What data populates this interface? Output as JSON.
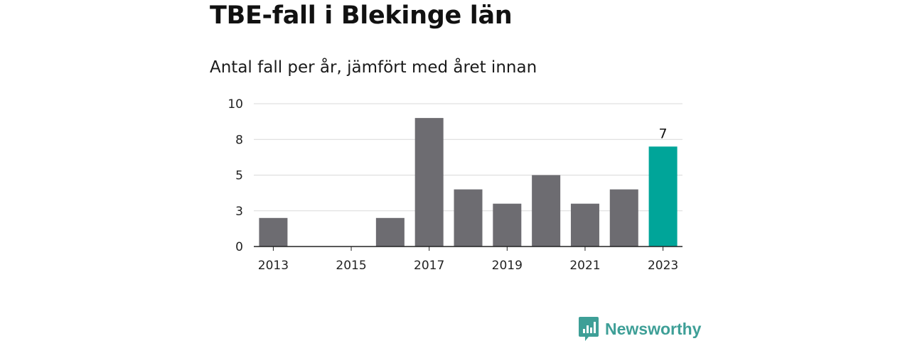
{
  "header": {
    "title": "TBE-fall i Blekinge län",
    "subtitle": "Antal fall per år, jämfört med året innan"
  },
  "chart_data": {
    "type": "bar",
    "categories": [
      "2013",
      "2014",
      "2015",
      "2016",
      "2017",
      "2018",
      "2019",
      "2020",
      "2021",
      "2022",
      "2023"
    ],
    "values": [
      2,
      0,
      0,
      2,
      9,
      4,
      3,
      5,
      3,
      4,
      7
    ],
    "x_tick_labels": [
      "2013",
      "2015",
      "2017",
      "2019",
      "2021",
      "2023"
    ],
    "y_ticks": [
      0,
      2.5,
      5,
      7.5,
      10
    ],
    "y_tick_labels": [
      "0",
      "3",
      "5",
      "8",
      "10"
    ],
    "ylim": [
      0,
      10
    ],
    "grid": true,
    "bar_color": "#6d6c71",
    "highlight_color": "#00a599",
    "highlight_category": "2023",
    "data_labels": [
      {
        "category": "2023",
        "text": "7"
      }
    ]
  },
  "branding": {
    "logo_text": "Newsworthy",
    "logo_color": "#3e9f97",
    "logo_icon": "bar-chart-speech-bubble-icon"
  }
}
